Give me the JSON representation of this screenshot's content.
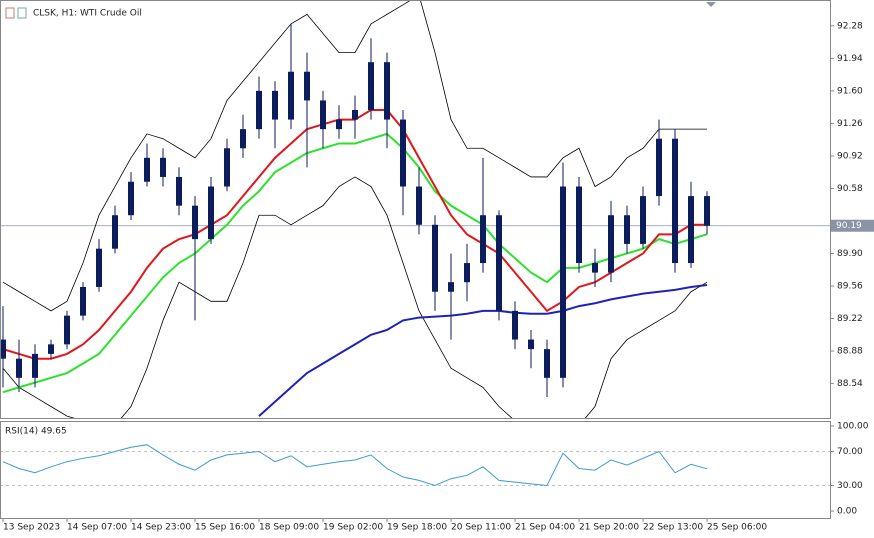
{
  "chart_data": [
    {
      "type": "candlestick",
      "title": "CLSK, H1:  WTI Crude Oil",
      "categories": [
        "13 Sep 2023",
        null,
        null,
        null,
        "14 Sep 07:00",
        null,
        null,
        null,
        "14 Sep 23:00",
        null,
        null,
        null,
        "15 Sep 16:00",
        null,
        null,
        null,
        "18 Sep 09:00",
        null,
        null,
        null,
        "19 Sep 02:00",
        null,
        null,
        null,
        "19 Sep 18:00",
        null,
        null,
        null,
        "20 Sep 11:00",
        null,
        null,
        null,
        "21 Sep 04:00",
        null,
        null,
        null,
        "21 Sep 20:00",
        null,
        null,
        null,
        "22 Sep 13:00",
        null,
        null,
        null,
        "25 Sep 06:00"
      ],
      "open": [
        89.0,
        88.8,
        88.6,
        88.85,
        88.95,
        89.25,
        89.55,
        89.95,
        90.3,
        90.65,
        90.9,
        90.7,
        90.4,
        90.05,
        90.6,
        91.0,
        91.2,
        91.6,
        91.3,
        91.8,
        91.5,
        91.2,
        91.3,
        91.4,
        91.9,
        91.3,
        90.6,
        90.2,
        89.5,
        89.6,
        89.8,
        90.3,
        89.3,
        89.0,
        88.9,
        88.6,
        90.6,
        89.8,
        89.7,
        90.3,
        90.0,
        90.5,
        91.1,
        89.8,
        90.5
      ],
      "high": [
        89.35,
        89.0,
        88.95,
        89.0,
        89.3,
        89.6,
        90.05,
        90.4,
        90.75,
        91.05,
        91.0,
        90.8,
        90.5,
        90.7,
        91.1,
        91.35,
        91.75,
        91.7,
        92.3,
        92.0,
        91.6,
        91.45,
        91.55,
        92.15,
        92.0,
        91.4,
        90.8,
        90.3,
        89.9,
        90.0,
        90.9,
        90.35,
        89.4,
        89.1,
        89.0,
        90.85,
        90.7,
        89.95,
        90.45,
        90.4,
        90.6,
        91.3,
        91.2,
        90.65,
        90.55
      ],
      "low": [
        88.5,
        88.45,
        88.5,
        88.8,
        88.9,
        89.2,
        89.5,
        89.9,
        90.25,
        90.6,
        90.6,
        90.3,
        89.2,
        90.0,
        90.55,
        90.9,
        91.1,
        91.0,
        91.2,
        90.8,
        91.0,
        91.1,
        91.1,
        91.3,
        91.0,
        90.3,
        90.1,
        89.3,
        89.0,
        89.4,
        89.7,
        89.2,
        88.9,
        88.7,
        88.4,
        88.5,
        89.7,
        89.55,
        89.6,
        89.9,
        89.95,
        90.4,
        89.7,
        89.75,
        90.1
      ],
      "close": [
        88.8,
        88.6,
        88.85,
        88.95,
        89.25,
        89.55,
        89.95,
        90.3,
        90.65,
        90.9,
        90.7,
        90.4,
        90.05,
        90.6,
        91.0,
        91.2,
        91.6,
        91.3,
        91.8,
        91.5,
        91.2,
        91.3,
        91.4,
        91.9,
        91.3,
        90.6,
        90.2,
        89.5,
        89.6,
        89.8,
        90.3,
        89.3,
        89.0,
        88.9,
        88.6,
        90.6,
        89.8,
        89.7,
        90.3,
        90.0,
        90.5,
        91.1,
        89.8,
        90.5,
        90.19
      ],
      "candle_color": "#0b1d5c",
      "series": [
        {
          "color": "#000000",
          "width": 0.8,
          "values": [
            89.6,
            89.5,
            89.4,
            89.3,
            89.4,
            89.8,
            90.3,
            90.6,
            90.9,
            91.15,
            91.1,
            91.0,
            90.9,
            91.1,
            91.5,
            91.7,
            91.9,
            92.1,
            92.3,
            92.4,
            92.2,
            92.0,
            92.0,
            92.3,
            92.4,
            92.5,
            92.6,
            92.0,
            91.3,
            91.0,
            91.0,
            90.9,
            90.8,
            90.7,
            90.7,
            90.9,
            91.0,
            90.6,
            90.7,
            90.9,
            91.0,
            91.2,
            91.2,
            91.2,
            91.2
          ]
        },
        {
          "color": "#000000",
          "width": 0.8,
          "values": [
            88.7,
            88.5,
            88.4,
            88.3,
            88.2,
            88.15,
            88.1,
            88.1,
            88.3,
            88.7,
            89.2,
            89.6,
            89.5,
            89.4,
            89.4,
            89.8,
            90.3,
            90.3,
            90.2,
            90.3,
            90.4,
            90.6,
            90.7,
            90.6,
            90.3,
            89.8,
            89.3,
            89.0,
            88.7,
            88.6,
            88.5,
            88.3,
            88.15,
            88.1,
            88.0,
            88.0,
            88.1,
            88.3,
            88.8,
            89.0,
            89.1,
            89.2,
            89.3,
            89.5,
            89.6
          ]
        },
        {
          "color": "#2fe02f",
          "width": 2,
          "values": [
            88.45,
            88.5,
            88.55,
            88.6,
            88.65,
            88.75,
            88.85,
            89.05,
            89.25,
            89.45,
            89.65,
            89.8,
            89.9,
            90.05,
            90.2,
            90.4,
            90.55,
            90.75,
            90.85,
            90.95,
            91.0,
            91.05,
            91.05,
            91.1,
            91.15,
            91.0,
            90.8,
            90.55,
            90.4,
            90.3,
            90.2,
            90.0,
            89.85,
            89.7,
            89.6,
            89.75,
            89.75,
            89.8,
            89.85,
            89.9,
            89.95,
            90.05,
            90.0,
            90.05,
            90.1
          ]
        },
        {
          "color": "#e0161a",
          "width": 2,
          "values": [
            88.9,
            88.85,
            88.8,
            88.8,
            88.85,
            88.95,
            89.1,
            89.3,
            89.5,
            89.75,
            89.95,
            90.05,
            90.1,
            90.2,
            90.3,
            90.5,
            90.7,
            90.9,
            91.05,
            91.2,
            91.25,
            91.3,
            91.3,
            91.4,
            91.4,
            91.2,
            90.9,
            90.6,
            90.3,
            90.1,
            90.0,
            89.9,
            89.7,
            89.5,
            89.3,
            89.4,
            89.55,
            89.6,
            89.7,
            89.8,
            89.9,
            90.1,
            90.1,
            90.2,
            90.2
          ]
        },
        {
          "color": "#1e22b8",
          "width": 2,
          "values": [
            null,
            null,
            null,
            null,
            null,
            null,
            null,
            null,
            null,
            null,
            null,
            null,
            null,
            null,
            null,
            null,
            88.2,
            88.35,
            88.5,
            88.65,
            88.75,
            88.85,
            88.95,
            89.05,
            89.1,
            89.2,
            89.23,
            89.24,
            89.25,
            89.27,
            89.3,
            89.3,
            89.28,
            89.27,
            89.27,
            89.3,
            89.35,
            89.38,
            89.42,
            89.45,
            89.48,
            89.5,
            89.52,
            89.55,
            89.57
          ]
        }
      ],
      "ylim": [
        88.18,
        92.55
      ],
      "yticks": [
        88.54,
        88.88,
        89.22,
        89.56,
        {
          "value": 89.9,
          "label": "89.90"
        },
        90.58,
        90.92,
        91.26,
        {
          "value": 91.6,
          "label": "91.60"
        },
        91.94,
        92.28
      ],
      "current_price": 90.19
    },
    {
      "type": "line",
      "title": "RSI(14) 49.65",
      "values": [
        58,
        50,
        45,
        52,
        58,
        62,
        65,
        70,
        75,
        78,
        66,
        55,
        48,
        60,
        66,
        68,
        70,
        58,
        65,
        52,
        55,
        58,
        60,
        66,
        50,
        40,
        36,
        30,
        38,
        42,
        52,
        36,
        34,
        32,
        30,
        68,
        50,
        48,
        60,
        54,
        62,
        70,
        45,
        55,
        49.65
      ],
      "color": "#3d9ad6",
      "ylim": [
        -8.2,
        104.7
      ],
      "yticks": [
        {
          "value": 0,
          "label": "0.00"
        },
        {
          "value": 30,
          "label": "30.00"
        },
        {
          "value": 70,
          "label": "70.00"
        },
        {
          "value": 100,
          "label": "100.00"
        }
      ],
      "levels": [
        30,
        70
      ]
    }
  ]
}
